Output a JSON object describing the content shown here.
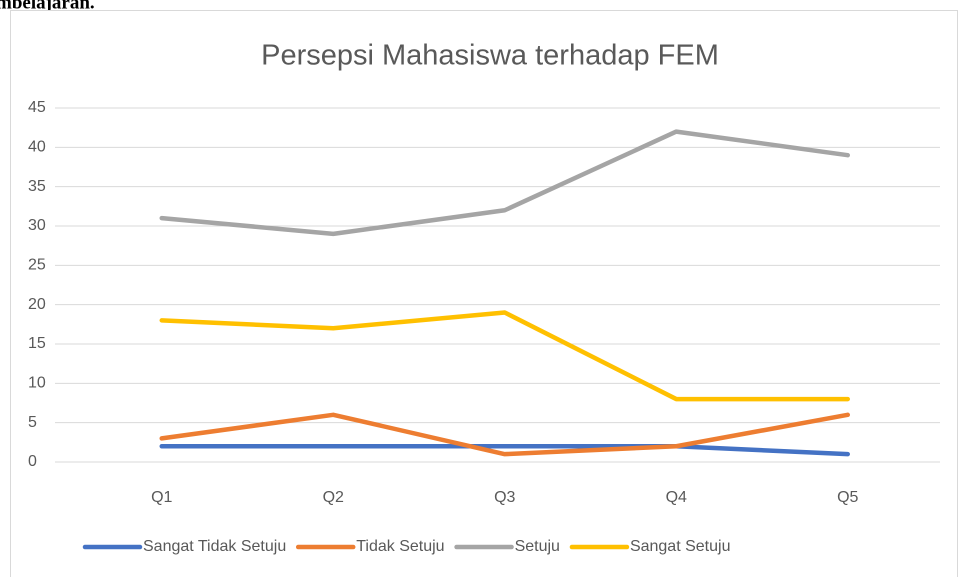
{
  "header_text": "mbelajaran.",
  "chart_data": {
    "type": "line",
    "title": "Persepsi Mahasiswa terhadap FEM",
    "categories": [
      "Q1",
      "Q2",
      "Q3",
      "Q4",
      "Q5"
    ],
    "series": [
      {
        "name": "Sangat Tidak Setuju",
        "color": "#4472c4",
        "values": [
          2,
          2,
          2,
          2,
          1
        ]
      },
      {
        "name": "Tidak Setuju",
        "color": "#ed7d31",
        "values": [
          3,
          6,
          1,
          2,
          6
        ]
      },
      {
        "name": "Setuju",
        "color": "#a5a5a5",
        "values": [
          31,
          29,
          32,
          42,
          39
        ]
      },
      {
        "name": "Sangat Setuju",
        "color": "#ffc000",
        "values": [
          18,
          17,
          19,
          8,
          8
        ]
      }
    ],
    "ylim": [
      0,
      45
    ],
    "yticks": [
      0,
      5,
      10,
      15,
      20,
      25,
      30,
      35,
      40,
      45
    ],
    "grid": true,
    "legend": "bottom"
  }
}
